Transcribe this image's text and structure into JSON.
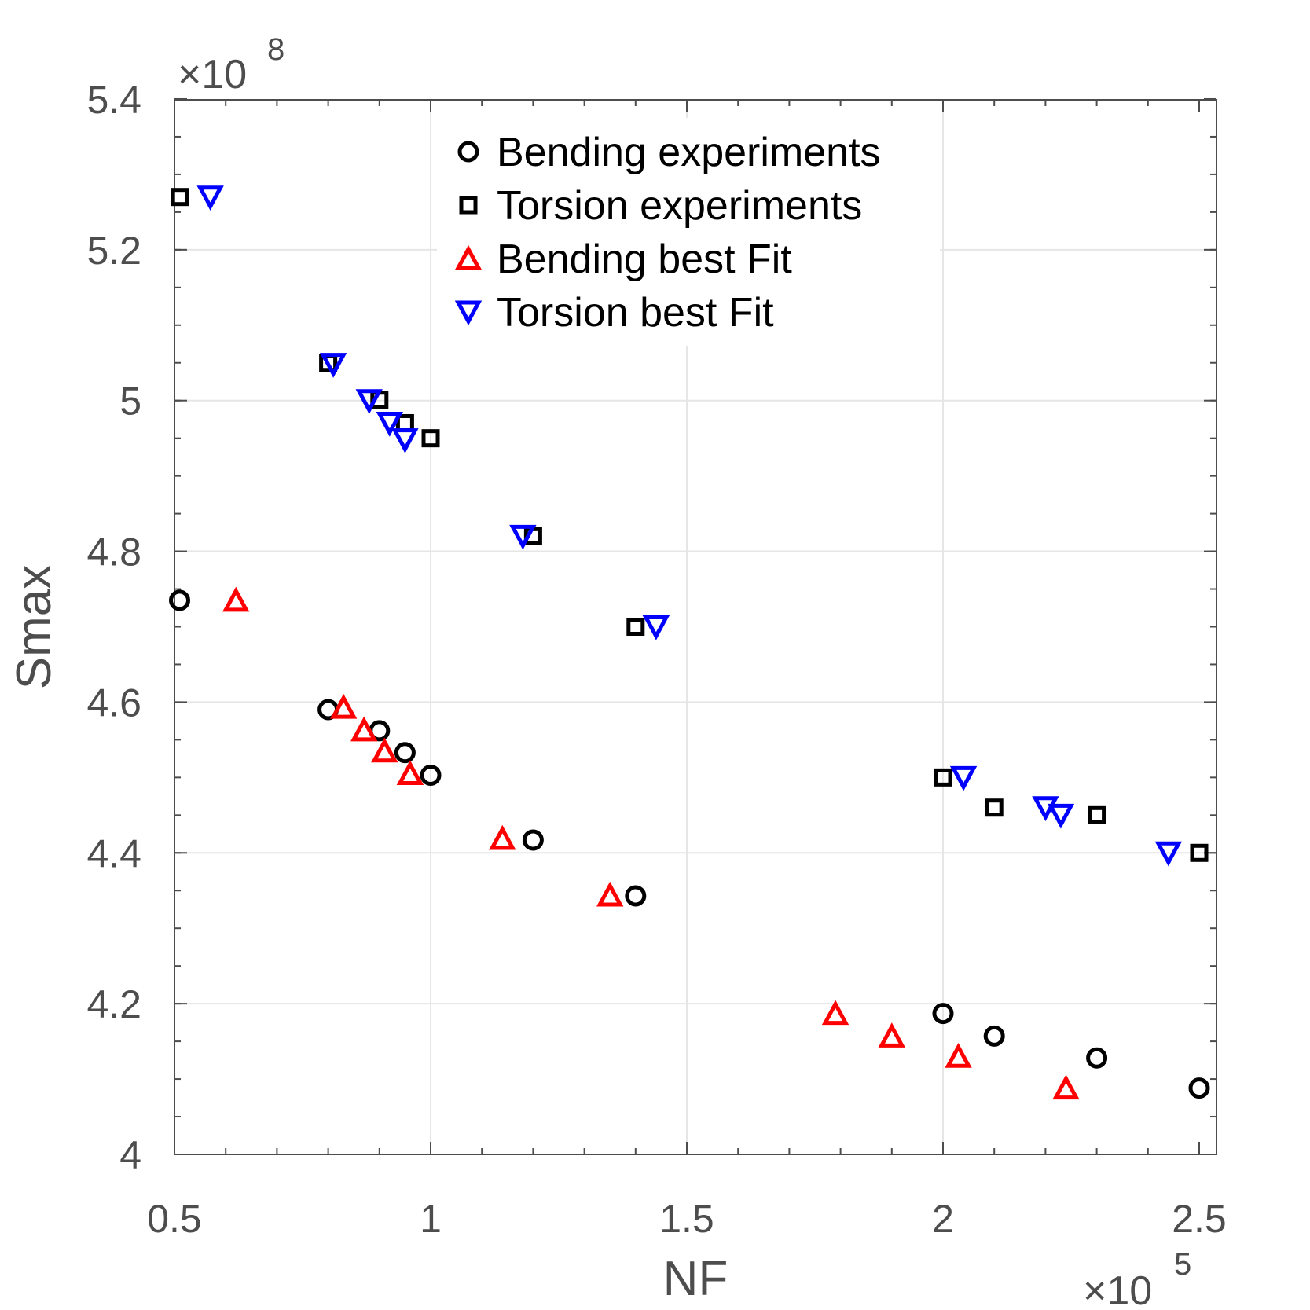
{
  "chart_data": {
    "type": "scatter",
    "title": "",
    "xlabel": "NF",
    "ylabel": "Smax",
    "x_exponent_label": "×10",
    "x_exponent": "5",
    "y_exponent_label": "×10",
    "y_exponent": "8",
    "xlim": [
      0.5,
      2.5
    ],
    "ylim": [
      4.0,
      5.4
    ],
    "xticks": [
      0.5,
      1.0,
      1.5,
      2.0,
      2.5
    ],
    "xtick_labels": [
      "0.5",
      "1",
      "1.5",
      "2",
      "2.5"
    ],
    "yticks": [
      4.0,
      4.2,
      4.4,
      4.6,
      4.8,
      5.0,
      5.2,
      5.4
    ],
    "ytick_labels": [
      "4",
      "4.2",
      "4.4",
      "4.6",
      "4.8",
      "5",
      "5.2",
      "5.4"
    ],
    "grid": true,
    "legend_position": "top-center",
    "series": [
      {
        "name": "Bending experiments",
        "marker": "circle",
        "color": "#000000",
        "points": [
          {
            "x": 0.51,
            "y": 4.735
          },
          {
            "x": 0.8,
            "y": 4.59
          },
          {
            "x": 0.9,
            "y": 4.562
          },
          {
            "x": 0.95,
            "y": 4.533
          },
          {
            "x": 1.0,
            "y": 4.503
          },
          {
            "x": 1.2,
            "y": 4.417
          },
          {
            "x": 1.4,
            "y": 4.343
          },
          {
            "x": 2.0,
            "y": 4.187
          },
          {
            "x": 2.1,
            "y": 4.157
          },
          {
            "x": 2.3,
            "y": 4.128
          },
          {
            "x": 2.5,
            "y": 4.088
          }
        ]
      },
      {
        "name": "Torsion experiments",
        "marker": "square",
        "color": "#000000",
        "points": [
          {
            "x": 0.51,
            "y": 5.27
          },
          {
            "x": 0.8,
            "y": 5.05
          },
          {
            "x": 0.9,
            "y": 5.001
          },
          {
            "x": 0.95,
            "y": 4.97
          },
          {
            "x": 1.0,
            "y": 4.95
          },
          {
            "x": 1.2,
            "y": 4.82
          },
          {
            "x": 1.4,
            "y": 4.7
          },
          {
            "x": 2.0,
            "y": 4.5
          },
          {
            "x": 2.1,
            "y": 4.46
          },
          {
            "x": 2.3,
            "y": 4.45
          },
          {
            "x": 2.5,
            "y": 4.4
          }
        ]
      },
      {
        "name": "Bending best Fit",
        "marker": "triangle-up",
        "color": "#ff0000",
        "points": [
          {
            "x": 0.62,
            "y": 4.735
          },
          {
            "x": 0.83,
            "y": 4.593
          },
          {
            "x": 0.87,
            "y": 4.563
          },
          {
            "x": 0.91,
            "y": 4.535
          },
          {
            "x": 0.96,
            "y": 4.505
          },
          {
            "x": 1.14,
            "y": 4.419
          },
          {
            "x": 1.35,
            "y": 4.344
          },
          {
            "x": 1.79,
            "y": 4.187
          },
          {
            "x": 1.9,
            "y": 4.157
          },
          {
            "x": 2.03,
            "y": 4.13
          },
          {
            "x": 2.24,
            "y": 4.088
          }
        ]
      },
      {
        "name": "Torsion best Fit",
        "marker": "triangle-down",
        "color": "#0000ff",
        "points": [
          {
            "x": 0.57,
            "y": 5.27
          },
          {
            "x": 0.81,
            "y": 5.048
          },
          {
            "x": 0.88,
            "y": 5.0
          },
          {
            "x": 0.92,
            "y": 4.97
          },
          {
            "x": 0.95,
            "y": 4.948
          },
          {
            "x": 1.18,
            "y": 4.82
          },
          {
            "x": 1.44,
            "y": 4.7
          },
          {
            "x": 2.04,
            "y": 4.5
          },
          {
            "x": 2.2,
            "y": 4.46
          },
          {
            "x": 2.23,
            "y": 4.45
          },
          {
            "x": 2.44,
            "y": 4.4
          }
        ]
      }
    ]
  }
}
